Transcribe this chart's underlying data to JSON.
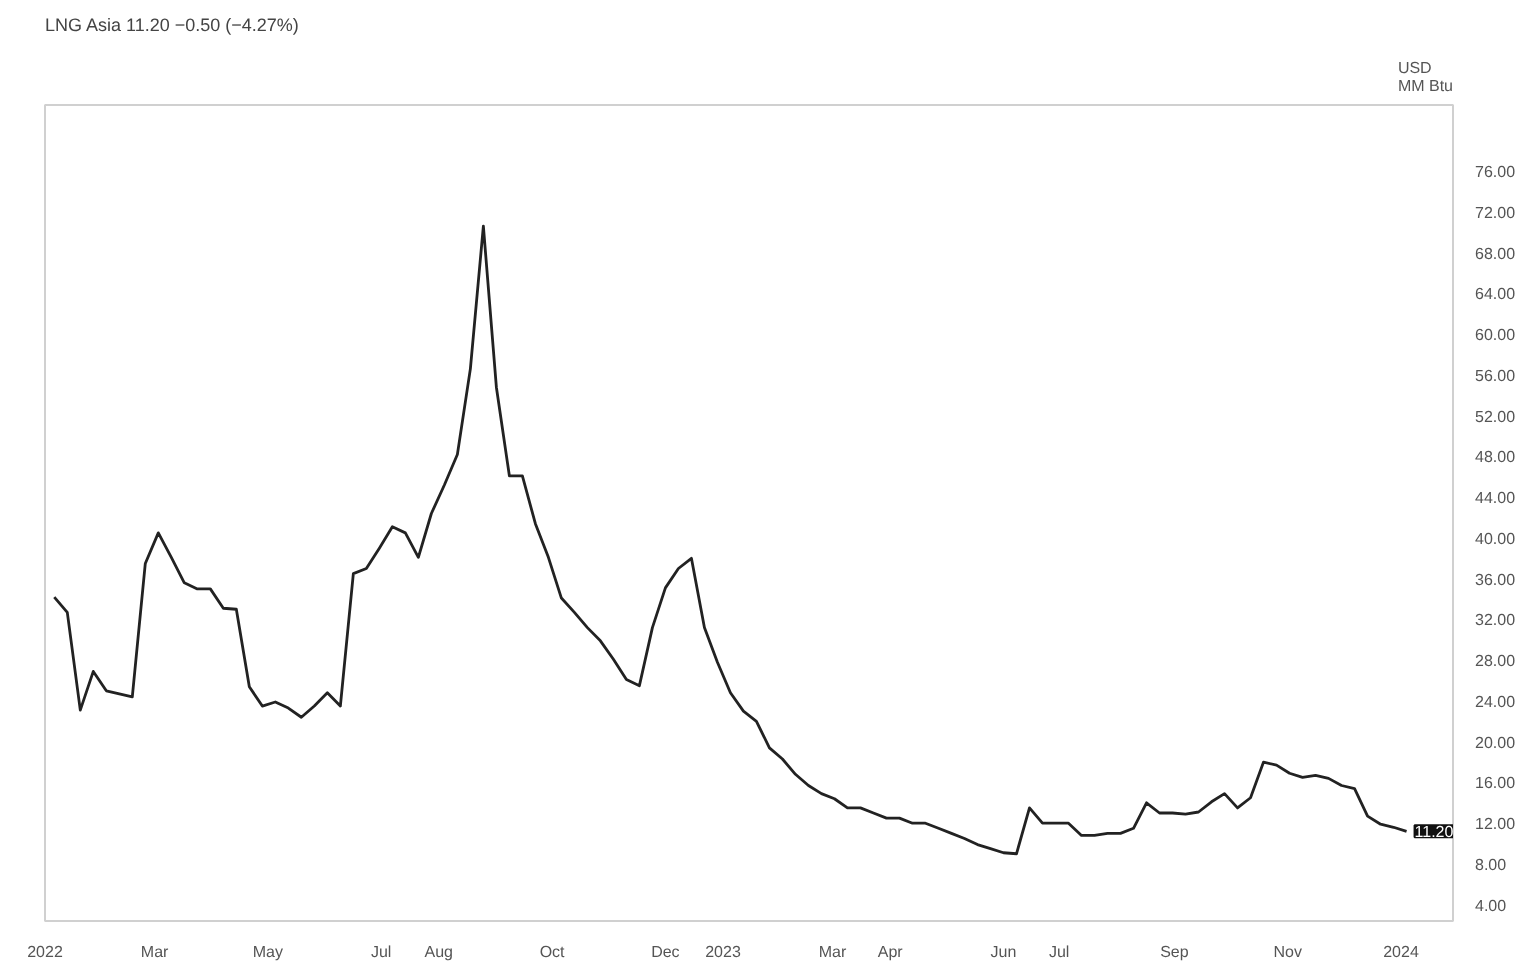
{
  "chart_data": {
    "type": "line",
    "title": "LNG Asia 11.20 −0.50 (−4.27%)",
    "ylabel": "USD\nMM Btu",
    "x": [
      "2022-01-06",
      "2022-01-13",
      "2022-01-20",
      "2022-01-27",
      "2022-02-03",
      "2022-02-10",
      "2022-02-17",
      "2022-02-24",
      "2022-03-03",
      "2022-03-10",
      "2022-03-17",
      "2022-03-24",
      "2022-03-31",
      "2022-04-07",
      "2022-04-14",
      "2022-04-21",
      "2022-04-28",
      "2022-05-05",
      "2022-05-12",
      "2022-05-19",
      "2022-05-26",
      "2022-06-02",
      "2022-06-09",
      "2022-06-16",
      "2022-06-23",
      "2022-06-30",
      "2022-07-07",
      "2022-07-14",
      "2022-07-21",
      "2022-07-28",
      "2022-08-04",
      "2022-08-11",
      "2022-08-18",
      "2022-08-25",
      "2022-09-01",
      "2022-09-08",
      "2022-09-15",
      "2022-09-22",
      "2022-09-29",
      "2022-10-06",
      "2022-10-13",
      "2022-10-20",
      "2022-10-27",
      "2022-11-03",
      "2022-11-10",
      "2022-11-17",
      "2022-11-24",
      "2022-12-01",
      "2022-12-08",
      "2022-12-15",
      "2022-12-22",
      "2022-12-29",
      "2023-01-05",
      "2023-01-12",
      "2023-01-19",
      "2023-01-26",
      "2023-02-02",
      "2023-02-09",
      "2023-02-16",
      "2023-02-23",
      "2023-03-02",
      "2023-03-09",
      "2023-03-16",
      "2023-03-23",
      "2023-03-30",
      "2023-04-06",
      "2023-04-13",
      "2023-04-20",
      "2023-04-27",
      "2023-05-04",
      "2023-05-11",
      "2023-05-18",
      "2023-05-25",
      "2023-06-01",
      "2023-06-08",
      "2023-06-15",
      "2023-06-22",
      "2023-06-29",
      "2023-07-06",
      "2023-07-13",
      "2023-07-20",
      "2023-07-27",
      "2023-08-03",
      "2023-08-10",
      "2023-08-17",
      "2023-08-24",
      "2023-08-31",
      "2023-09-07",
      "2023-09-14",
      "2023-09-21",
      "2023-09-28",
      "2023-10-05",
      "2023-10-12",
      "2023-10-19",
      "2023-10-26",
      "2023-11-02",
      "2023-11-09",
      "2023-11-16",
      "2023-11-23",
      "2023-11-30",
      "2023-12-07",
      "2023-12-14",
      "2023-12-21",
      "2023-12-28",
      "2024-01-04"
    ],
    "series": [
      {
        "color": "#222222",
        "values": [
          34.2,
          32.7,
          23.1,
          26.9,
          25.0,
          24.7,
          24.4,
          37.5,
          40.5,
          38.1,
          35.6,
          35.0,
          35.0,
          33.1,
          33.0,
          25.4,
          23.5,
          23.9,
          23.3,
          22.4,
          23.5,
          24.8,
          23.5,
          36.5,
          37.0,
          39.0,
          41.1,
          40.5,
          38.1,
          42.4,
          45.2,
          48.2,
          56.6,
          70.6,
          54.8,
          46.1,
          46.1,
          41.4,
          38.1,
          34.1,
          32.7,
          31.2,
          29.9,
          28.1,
          26.1,
          25.5,
          31.2,
          35.1,
          37.0,
          38.0,
          31.2,
          27.8,
          24.8,
          23.0,
          22.0,
          19.4,
          18.3,
          16.8,
          15.7,
          14.9,
          14.4,
          13.5,
          13.5,
          13.0,
          12.5,
          12.5,
          12.0,
          12.0,
          11.5,
          11.0,
          10.5,
          9.9,
          9.5,
          9.1,
          9.0,
          13.5,
          12.0,
          12.0,
          12.0,
          10.8,
          10.8,
          11.0,
          11.0,
          11.5,
          14.0,
          13.0,
          13.0,
          12.9,
          13.1,
          14.1,
          14.9,
          13.5,
          14.5,
          18.0,
          17.7,
          16.9,
          16.5,
          16.7,
          16.4,
          15.7,
          15.4,
          12.7,
          11.9,
          11.6,
          11.2
        ]
      }
    ],
    "xlim": [
      "2022-01-01",
      "2024-01-29"
    ],
    "xticks": [
      {
        "value": "2022-01-01",
        "label": "2022"
      },
      {
        "value": "2022-03-01",
        "label": "Mar"
      },
      {
        "value": "2022-05-01",
        "label": "May"
      },
      {
        "value": "2022-07-01",
        "label": "Jul"
      },
      {
        "value": "2022-08-01",
        "label": "Aug"
      },
      {
        "value": "2022-10-01",
        "label": "Oct"
      },
      {
        "value": "2022-12-01",
        "label": "Dec"
      },
      {
        "value": "2023-01-01",
        "label": "2023"
      },
      {
        "value": "2023-03-01",
        "label": "Mar"
      },
      {
        "value": "2023-04-01",
        "label": "Apr"
      },
      {
        "value": "2023-06-01",
        "label": "Jun"
      },
      {
        "value": "2023-07-01",
        "label": "Jul"
      },
      {
        "value": "2023-09-01",
        "label": "Sep"
      },
      {
        "value": "2023-11-01",
        "label": "Nov"
      },
      {
        "value": "2024-01-01",
        "label": "2024"
      }
    ],
    "ylim": [
      2.4,
      82.5
    ],
    "yticks": [
      {
        "value": 4,
        "label": "4.00"
      },
      {
        "value": 8,
        "label": "8.00"
      },
      {
        "value": 12,
        "label": "12.00"
      },
      {
        "value": 16,
        "label": "16.00"
      },
      {
        "value": 20,
        "label": "20.00"
      },
      {
        "value": 24,
        "label": "24.00"
      },
      {
        "value": 28,
        "label": "28.00"
      },
      {
        "value": 32,
        "label": "32.00"
      },
      {
        "value": 36,
        "label": "36.00"
      },
      {
        "value": 40,
        "label": "40.00"
      },
      {
        "value": 44,
        "label": "44.00"
      },
      {
        "value": 48,
        "label": "48.00"
      },
      {
        "value": 52,
        "label": "52.00"
      },
      {
        "value": 56,
        "label": "56.00"
      },
      {
        "value": 60,
        "label": "60.00"
      },
      {
        "value": 64,
        "label": "64.00"
      },
      {
        "value": 68,
        "label": "68.00"
      },
      {
        "value": 72,
        "label": "72.00"
      },
      {
        "value": 76,
        "label": "76.00"
      }
    ],
    "annotations": [
      {
        "text": "11.20",
        "x": "2024-01-04",
        "y": 11.2
      }
    ],
    "grid": false,
    "marker": "none",
    "line_style": "solid"
  }
}
